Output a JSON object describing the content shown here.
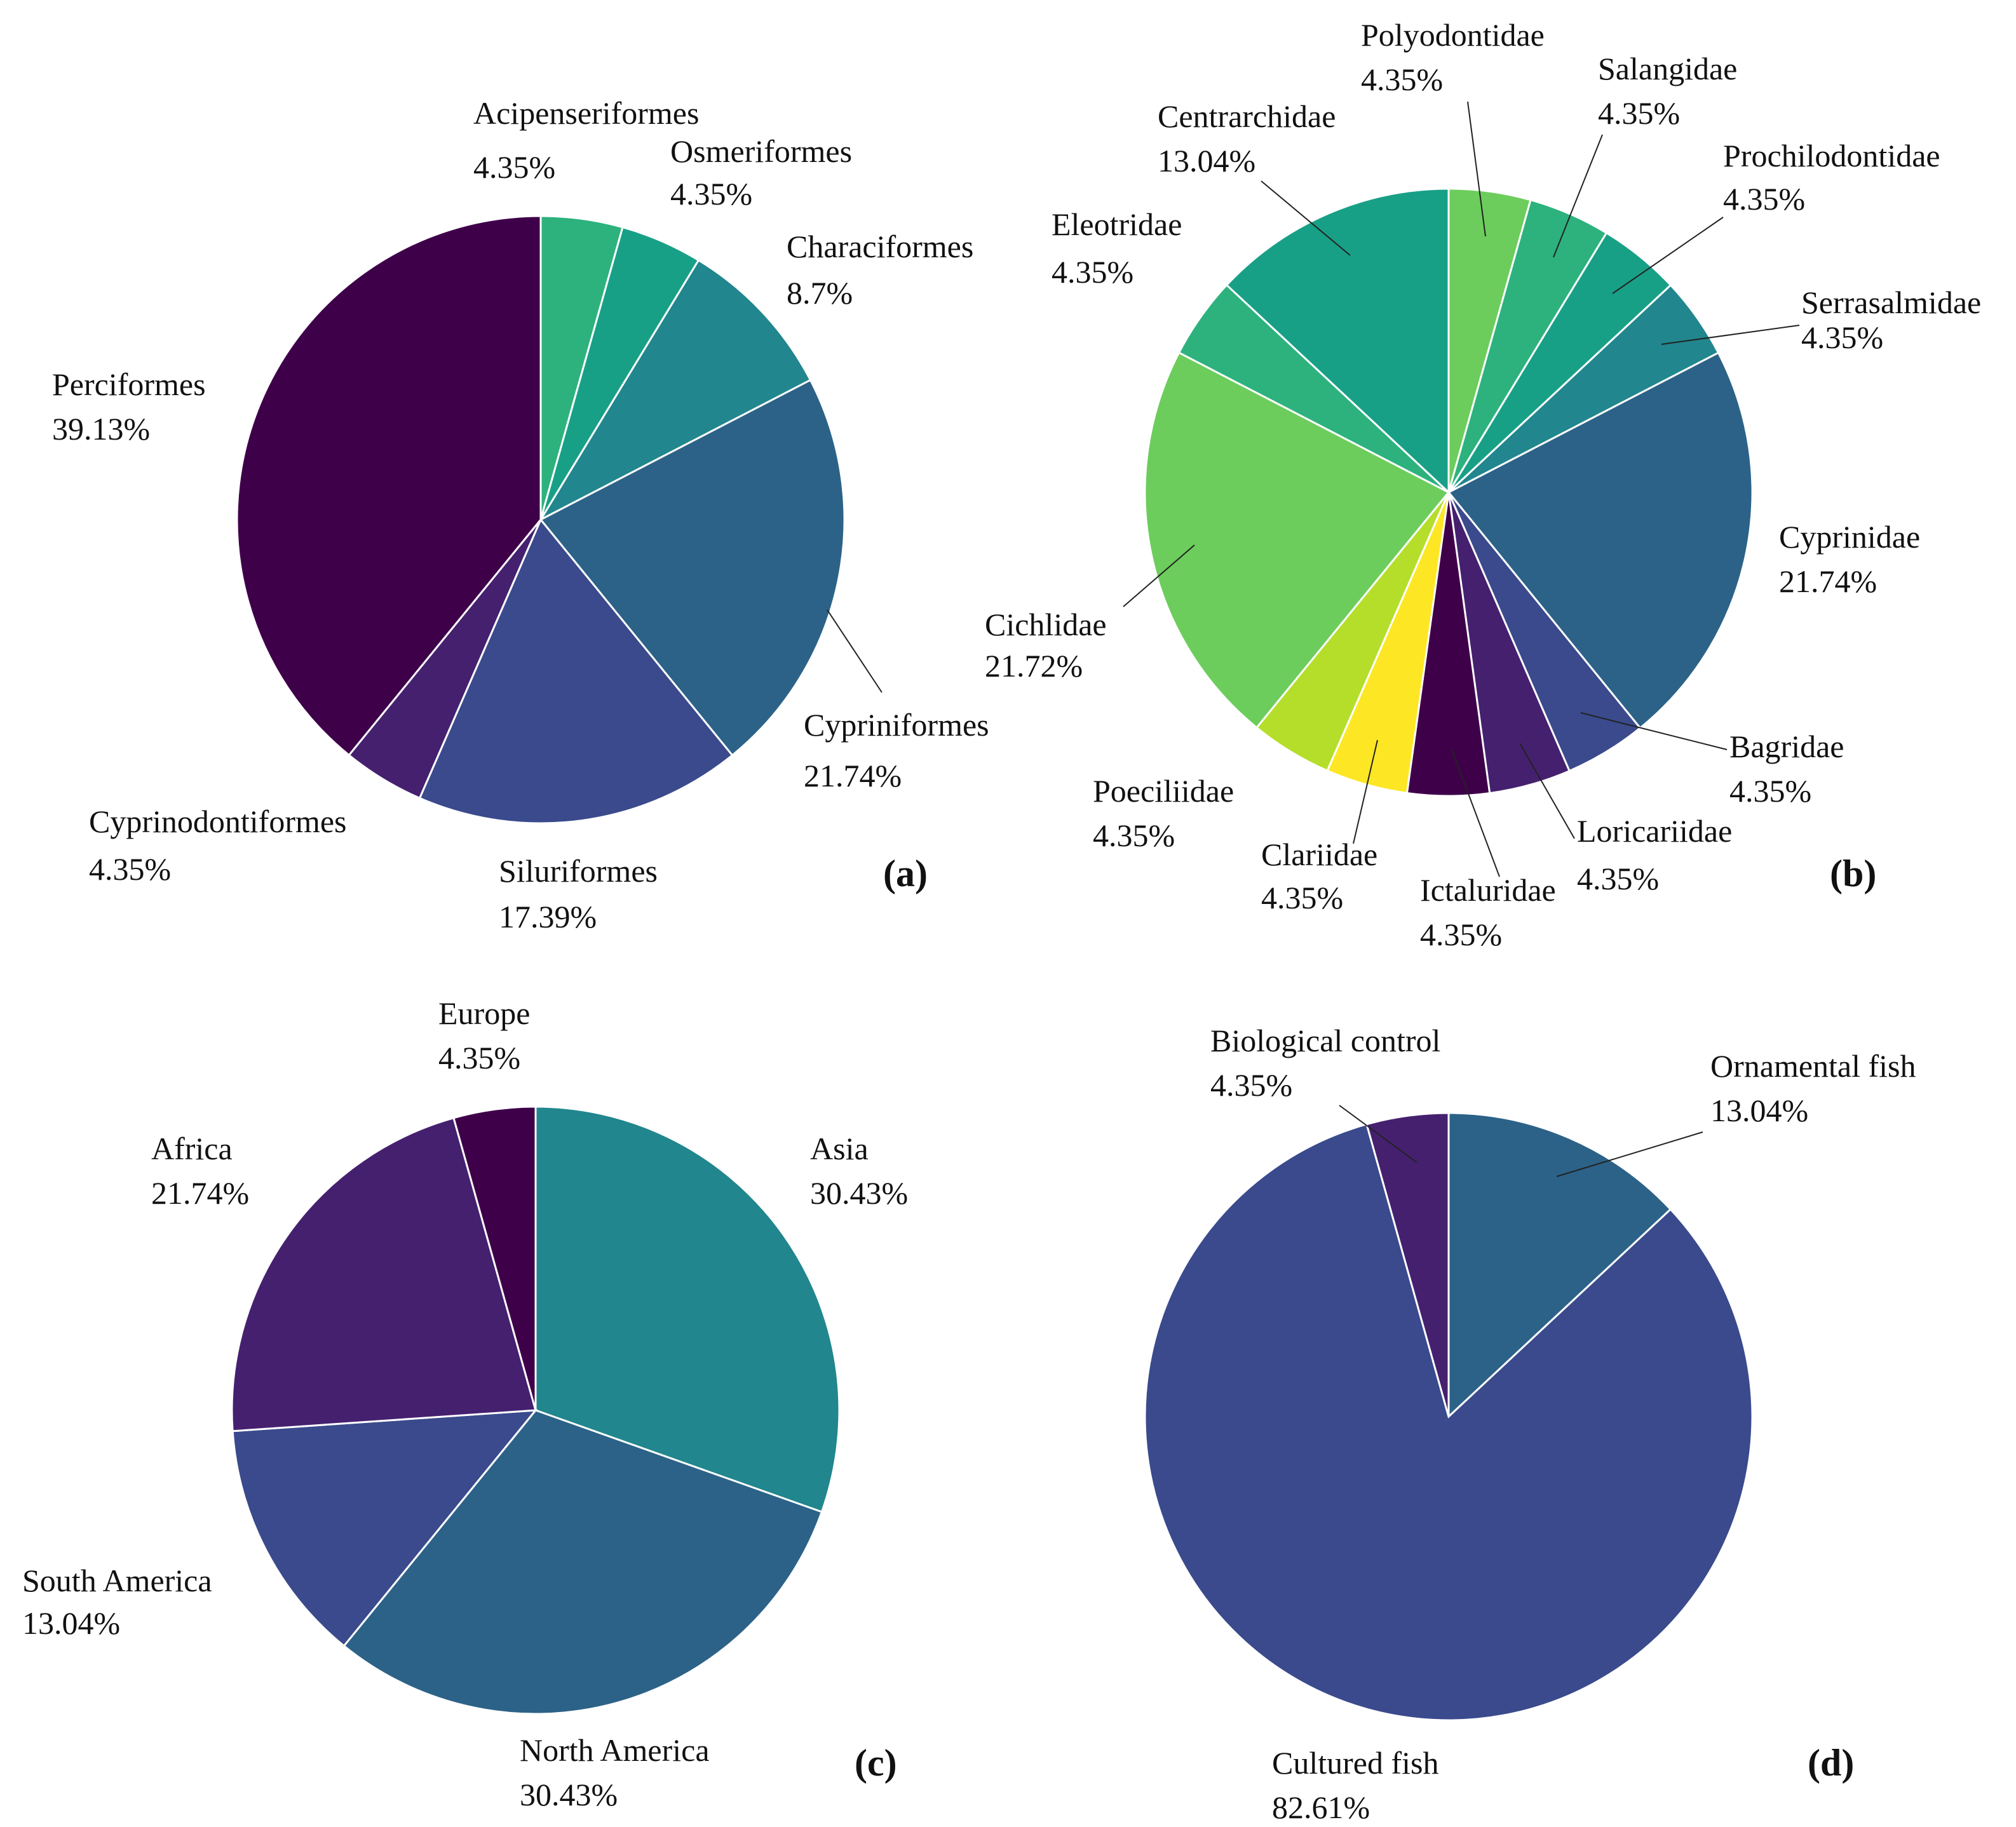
{
  "chart_data": [
    {
      "type": "pie",
      "panel": "(a)",
      "title": "",
      "slices": [
        {
          "label": "Acipenseriformes",
          "value": 4.35,
          "value_label": "4.35%",
          "color": "#2db27d"
        },
        {
          "label": "Osmeriformes",
          "value": 4.35,
          "value_label": "4.35%",
          "color": "#18a087"
        },
        {
          "label": "Characiformes",
          "value": 8.7,
          "value_label": "8.7%",
          "color": "#21868d"
        },
        {
          "label": "Cypriniformes",
          "value": 21.74,
          "value_label": "21.74%",
          "color": "#2c6288"
        },
        {
          "label": "Siluriformes",
          "value": 17.39,
          "value_label": "17.39%",
          "color": "#3a4a8c"
        },
        {
          "label": "Cyprinodontiformes",
          "value": 4.35,
          "value_label": "4.35%",
          "color": "#45206f"
        },
        {
          "label": "Perciformes",
          "value": 39.13,
          "value_label": "39.13%",
          "color": "#3f004a"
        }
      ]
    },
    {
      "type": "pie",
      "panel": "(b)",
      "title": "",
      "slices": [
        {
          "label": "Polyodontidae",
          "value": 4.35,
          "value_label": "4.35%",
          "color": "#6ccd5c"
        },
        {
          "label": "Salangidae",
          "value": 4.35,
          "value_label": "4.35%",
          "color": "#2db27d"
        },
        {
          "label": "Prochilodontidae",
          "value": 4.35,
          "value_label": "4.35%",
          "color": "#18a087"
        },
        {
          "label": "Serrasalmidae",
          "value": 4.35,
          "value_label": "4.35%",
          "color": "#21868d"
        },
        {
          "label": "Cyprinidae",
          "value": 21.74,
          "value_label": "21.74%",
          "color": "#2c6288"
        },
        {
          "label": "Bagridae",
          "value": 4.35,
          "value_label": "4.35%",
          "color": "#3a4a8c"
        },
        {
          "label": "Loricariidae",
          "value": 4.35,
          "value_label": "4.35%",
          "color": "#45206f"
        },
        {
          "label": "Ictaluridae",
          "value": 4.35,
          "value_label": "4.35%",
          "color": "#3f004a"
        },
        {
          "label": "Clariidae",
          "value": 4.35,
          "value_label": "4.35%",
          "color": "#fde725"
        },
        {
          "label": "Poeciliidae",
          "value": 4.35,
          "value_label": "4.35%",
          "color": "#b5de2b"
        },
        {
          "label": "Cichlidae",
          "value": 21.72,
          "value_label": "21.72%",
          "color": "#6ccd5c"
        },
        {
          "label": "Eleotridae",
          "value": 4.35,
          "value_label": "4.35%",
          "color": "#2db27d"
        },
        {
          "label": "Centrarchidae",
          "value": 13.04,
          "value_label": "13.04%",
          "color": "#18a087"
        }
      ]
    },
    {
      "type": "pie",
      "panel": "(c)",
      "title": "",
      "slices": [
        {
          "label": "Asia",
          "value": 30.43,
          "value_label": "30.43%",
          "color": "#21868d"
        },
        {
          "label": "North America",
          "value": 30.43,
          "value_label": "30.43%",
          "color": "#2c6288"
        },
        {
          "label": "South America",
          "value": 13.04,
          "value_label": "13.04%",
          "color": "#3a4a8c"
        },
        {
          "label": "Africa",
          "value": 21.74,
          "value_label": "21.74%",
          "color": "#45206f"
        },
        {
          "label": "Europe",
          "value": 4.35,
          "value_label": "4.35%",
          "color": "#3f004a"
        }
      ]
    },
    {
      "type": "pie",
      "panel": "(d)",
      "title": "",
      "slices": [
        {
          "label": "Ornamental fish",
          "value": 13.04,
          "value_label": "13.04%",
          "color": "#2c6288"
        },
        {
          "label": "Cultured fish",
          "value": 82.61,
          "value_label": "82.61%",
          "color": "#3a4a8c"
        },
        {
          "label": "Biological control",
          "value": 4.35,
          "value_label": "4.35%",
          "color": "#45206f"
        }
      ]
    }
  ]
}
